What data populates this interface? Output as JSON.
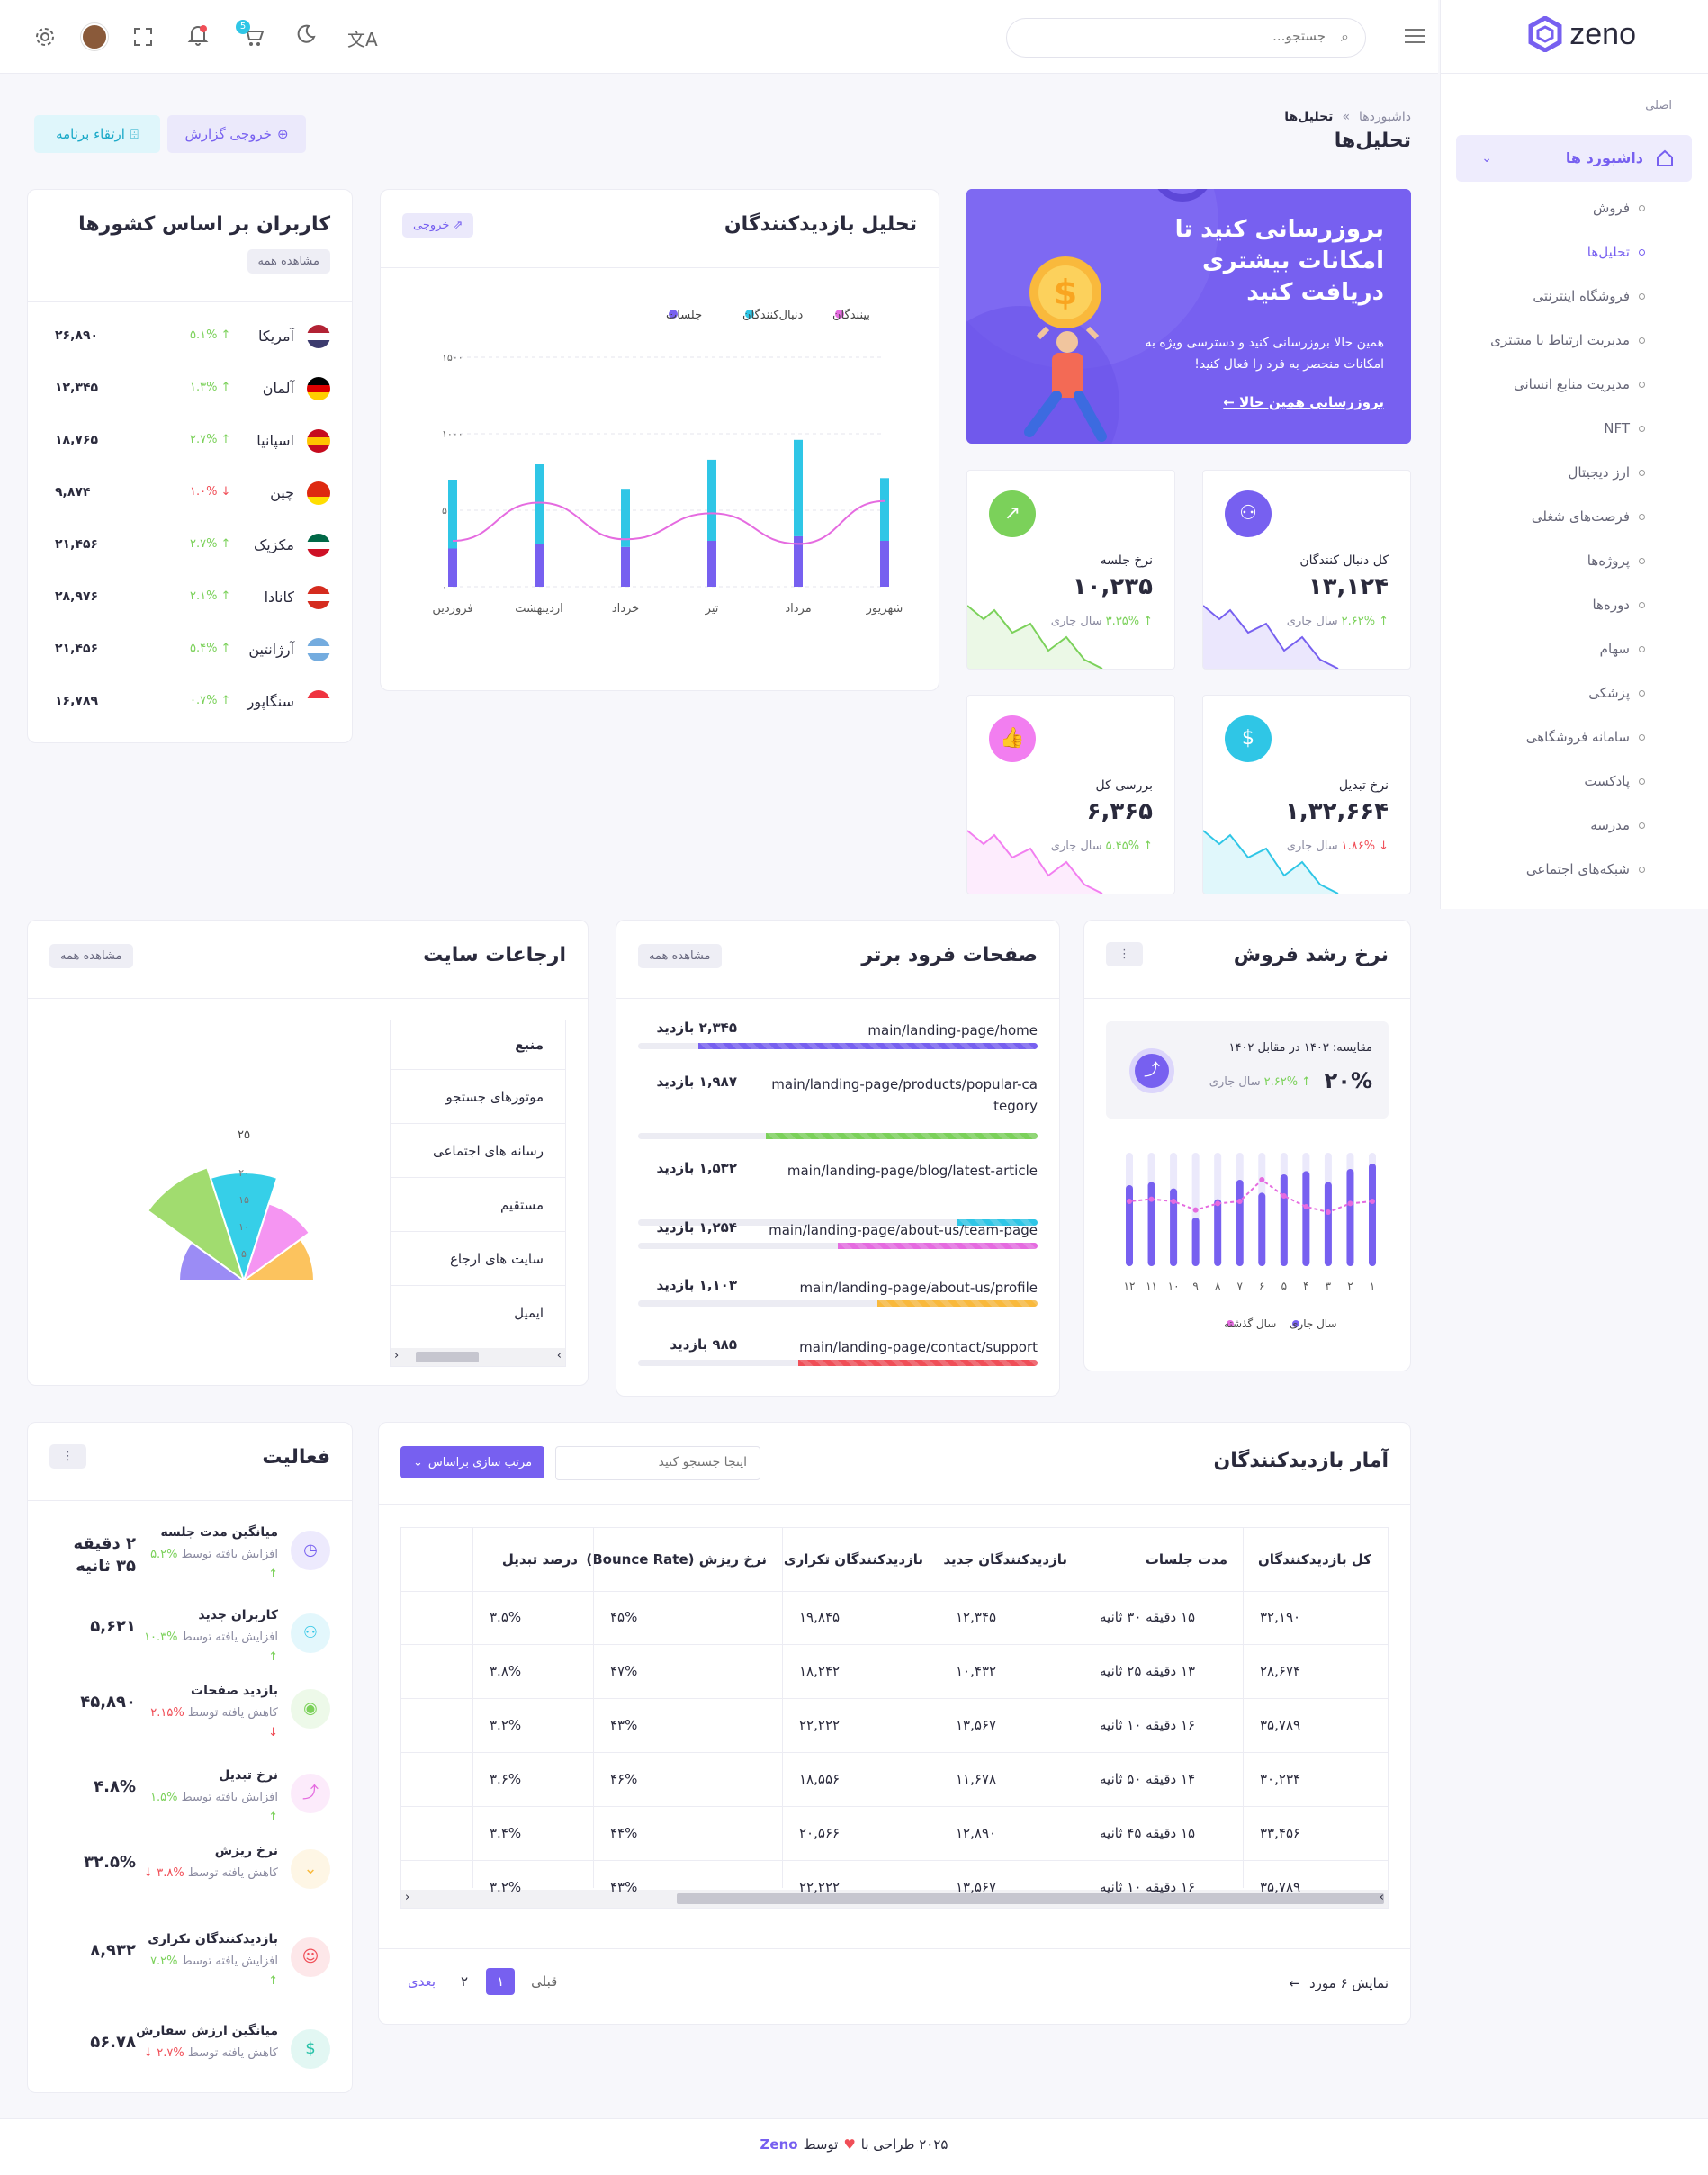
{
  "sidebar": {
    "logo_text": "zeno",
    "section": "اصلی",
    "dashboards_label": "داشبورد ها",
    "items": [
      "فروش",
      "تحلیل‌ها",
      "فروشگاه اینترنتی",
      "مدیریت ارتباط با مشتری",
      "مدیریت منابع انسانی",
      "NFT",
      "ارز دیجیتال",
      "فرصت‌های شغلی",
      "پروژه‌ها",
      "دوره‌ها",
      "سهام",
      "پزشکی",
      "سامانه فروشگاهی",
      "پادکست",
      "مدرسه",
      "شبکه‌های اجتماعی"
    ],
    "active_item": "تحلیل‌ها"
  },
  "header": {
    "search_placeholder": "جستجو...",
    "cart_badge": "5"
  },
  "page": {
    "breadcrumb_root": "داشبوردها",
    "breadcrumb_sep": "»",
    "breadcrumb_current": "تحلیل‌ها",
    "title": "تحلیل‌ها",
    "export_button": "خروجی گزارش",
    "upgrade_button": "ارتقاء برنامه"
  },
  "promo": {
    "title": "بروزرسانی کنید تا امکانات بیشتری دریافت کنید",
    "desc": "همین حالا بروزرسانی کنید و دسترسی ویژه به امکانات منحصر به فرد را فعال کنید!",
    "link": "بروزرسانی همین حالا ←"
  },
  "stats": [
    {
      "label": "کل دنبال کنندگان",
      "value": "۱۳,۱۲۴",
      "change": "۲.۶۲%",
      "dir": "up",
      "period": "سال جاری",
      "icon": "users-icon",
      "color": "#7760f0"
    },
    {
      "label": "نرخ جلسه",
      "value": "۱۰,۲۳۵",
      "change": "۳.۳۵%",
      "dir": "up",
      "period": "سال جاری",
      "icon": "trend-up-icon",
      "color": "#7bd15a"
    },
    {
      "label": "نرخ تبدیل",
      "value": "۱,۳۲,۶۶۴",
      "change": "۱.۸۶%",
      "dir": "down",
      "period": "سال جاری",
      "icon": "dollar-icon",
      "color": "#2fc6e6"
    },
    {
      "label": "بررسی کل",
      "value": "۶,۳۶۵",
      "change": "۵.۴۵%",
      "dir": "up",
      "period": "سال جاری",
      "icon": "thumbs-up-icon",
      "color": "#f27ef0"
    }
  ],
  "visitors_chart": {
    "title": "تحلیل بازدیدکنندگان",
    "export": "خروجی",
    "chart_data": {
      "type": "bar",
      "categories": [
        "فروردین",
        "اردیبهشت",
        "خرداد",
        "تیر",
        "مرداد",
        "شهریور"
      ],
      "series": [
        {
          "name": "جلسات",
          "values": [
            250,
            280,
            260,
            300,
            330,
            300
          ],
          "color": "#7760f0"
        },
        {
          "name": "دنبال‌کنندگان",
          "values": [
            450,
            520,
            380,
            530,
            630,
            410
          ],
          "color": "#2fc6e6"
        },
        {
          "name": "بینندگان",
          "values": [
            300,
            550,
            310,
            480,
            280,
            560
          ],
          "color": "#e56be0"
        }
      ],
      "y_ticks": [
        "۰",
        "۵۰۰",
        "۱۰۰۰",
        "۱۵۰۰"
      ],
      "ylim": [
        0,
        1500
      ],
      "grid": true,
      "legend_position": "top-center"
    }
  },
  "countries": {
    "title": "کاربران بر اساس کشورها",
    "view_all": "مشاهده همه",
    "rows": [
      {
        "name": "آمریکا",
        "change": "۵.۱%",
        "dir": "up",
        "value": "۲۶,۸۹۰",
        "flag": "us"
      },
      {
        "name": "آلمان",
        "change": "۱.۳%",
        "dir": "up",
        "value": "۱۲,۳۴۵",
        "flag": "de"
      },
      {
        "name": "اسپانیا",
        "change": "۲.۷%",
        "dir": "up",
        "value": "۱۸,۷۶۵",
        "flag": "es"
      },
      {
        "name": "چین",
        "change": "۱.۰%",
        "dir": "down",
        "value": "۹,۸۷۴",
        "flag": "cn"
      },
      {
        "name": "مکزیک",
        "change": "۲.۷%",
        "dir": "up",
        "value": "۲۱,۴۵۶",
        "flag": "mx"
      },
      {
        "name": "کانادا",
        "change": "۲.۱%",
        "dir": "up",
        "value": "۲۸,۹۷۶",
        "flag": "ca"
      },
      {
        "name": "آرژانتین",
        "change": "۵.۴%",
        "dir": "up",
        "value": "۲۱,۴۵۶",
        "flag": "ar"
      },
      {
        "name": "سنگاپور",
        "change": "۰.۷%",
        "dir": "up",
        "value": "۱۶,۷۸۹",
        "flag": "sg"
      }
    ]
  },
  "sales_growth": {
    "title": "نرخ رشد فروش",
    "compare_label": "مقایسه: ۱۴۰۳ در مقابل ۱۴۰۲",
    "percent": "۲۰%",
    "change": "۲.۶۲%",
    "period": "سال جاری",
    "chart_data": {
      "type": "bar",
      "categories": [
        "۱",
        "۲",
        "۳",
        "۴",
        "۵",
        "۶",
        "۷",
        "۸",
        "۹",
        "۱۰",
        "۱۱",
        "۱۲"
      ],
      "series": [
        {
          "name": "سال جاری",
          "values": [
            95,
            90,
            78,
            88,
            85,
            68,
            80,
            62,
            45,
            72,
            78,
            75
          ],
          "color": "#7760f0"
        },
        {
          "name": "سال گذشته",
          "values": [
            60,
            58,
            50,
            55,
            65,
            80,
            60,
            58,
            52,
            60,
            62,
            60
          ],
          "color": "#e56be0"
        }
      ]
    }
  },
  "landing": {
    "title": "صفحات فرود برتر",
    "view_all": "مشاهده همه",
    "rows": [
      {
        "path": "main/landing-page/home",
        "visits": "۲,۳۴۵ بازدید",
        "pct": 0.85,
        "color": "#7760f0"
      },
      {
        "path": "main/landing-page/products/popular-category",
        "visits": "۱,۹۸۷ بازدید",
        "pct": 0.68,
        "color": "#7bd15a"
      },
      {
        "path": "main/landing-page/blog/latest-article",
        "visits": "۱,۵۳۲ بازدید",
        "pct": 0.2,
        "color": "#2fc6e6"
      },
      {
        "path": "main/landing-page/about-us/team-page",
        "visits": "۱,۲۵۴ بازدید",
        "pct": 0.5,
        "color": "#e56be0"
      },
      {
        "path": "main/landing-page/about-us/profile",
        "visits": "۱,۱۰۳ بازدید",
        "pct": 0.4,
        "color": "#f9b93c"
      },
      {
        "path": "main/landing-page/contact/support",
        "visits": "۹۸۵ بازدید",
        "pct": 0.6,
        "color": "#f04e57"
      }
    ]
  },
  "referrals": {
    "title": "ارجاعات سایت",
    "view_all": "مشاهده همه",
    "header": "منبع",
    "sources": [
      "موتورهای جستجو",
      "رسانه های اجتماعی",
      "مستقیم",
      "سایت های ارجاع",
      "ایمیل"
    ],
    "chart_data": {
      "type": "polar-area",
      "max_label": "۲۵",
      "ticks": [
        "۵",
        "۱۰",
        "۱۵",
        "۲۰"
      ],
      "slices": [
        {
          "value": 12,
          "color": "#9b8cf5"
        },
        {
          "value": 22,
          "color": "#a1dc6f"
        },
        {
          "value": 20,
          "color": "#36cfe8"
        },
        {
          "value": 15,
          "color": "#f595f2"
        },
        {
          "value": 13,
          "color": "#fcc35e"
        }
      ]
    }
  },
  "activity": {
    "title": "فعالیت",
    "rows": [
      {
        "title": "میانگین مدت جلسه",
        "sub": "افزایش یافته توسط",
        "pct": "%۵.۲",
        "dir": "up",
        "value": "۲ دقیقه ۳۵ ثانیه",
        "icon": "clock-icon",
        "color": "#7760f0"
      },
      {
        "title": "کاربران جدید",
        "sub": "افزایش یافته توسط",
        "pct": "%۱۰.۳",
        "dir": "up",
        "value": "۵,۶۲۱",
        "icon": "user-add-icon",
        "color": "#2fc6e6"
      },
      {
        "title": "بازدید صفحات",
        "sub": "کاهش یافته توسط",
        "pct": "%۲.۱۵",
        "dir": "down",
        "value": "۴۵,۸۹۰",
        "icon": "eye-icon",
        "color": "#7bd15a"
      },
      {
        "title": "نرخ تبدیل",
        "sub": "افزایش یافته توسط",
        "pct": "%۱.۵",
        "dir": "up",
        "value": "۴.۸%",
        "icon": "chart-line-icon",
        "color": "#e56be0"
      },
      {
        "title": "نرخ ریزش",
        "sub": "کاهش یافته توسط",
        "pct": "%۳.۸",
        "dir": "down",
        "value": "۳۲.۵%",
        "icon": "chevron-down-icon",
        "color": "#f9b93c"
      },
      {
        "title": "بازدیدکنندگان تکراری",
        "sub": "افزایش یافته توسط",
        "pct": "%۷.۲",
        "dir": "up",
        "value": "۸,۹۳۲",
        "icon": "user-icon",
        "color": "#f04e57"
      },
      {
        "title": "میانگین ارزش سفارش",
        "sub": "کاهش یافته توسط",
        "pct": "%۲.۷",
        "dir": "down",
        "value": "۵۶.۷۸",
        "icon": "coin-icon",
        "color": "#27c2a8"
      }
    ]
  },
  "visitor_stats": {
    "title": "آمار بازدیدکنندگان",
    "search_placeholder": "اینجا جستجو کنید",
    "sort_button": "مرتب سازی براساس",
    "columns": [
      "کل بازدیدکنندگان",
      "مدت جلسات",
      "بازدیدکنندگان جدید",
      "بازدیدکنندگان تکراری",
      "نرخ ریزش (Bounce Rate)",
      "درصد تبدیل"
    ],
    "rows": [
      [
        "۳۲,۱۹۰",
        "۱۵ دقیقه ۳۰ ثانیه",
        "۱۲,۳۴۵",
        "۱۹,۸۴۵",
        "۴۵%",
        "۳.۵%"
      ],
      [
        "۲۸,۶۷۴",
        "۱۳ دقیقه ۲۵ ثانیه",
        "۱۰,۴۳۲",
        "۱۸,۲۴۲",
        "۴۷%",
        "۳.۸%"
      ],
      [
        "۳۵,۷۸۹",
        "۱۶ دقیقه ۱۰ ثانیه",
        "۱۳,۵۶۷",
        "۲۲,۲۲۲",
        "۴۳%",
        "۳.۲%"
      ],
      [
        "۳۰,۲۳۴",
        "۱۴ دقیقه ۵۰ ثانیه",
        "۱۱,۶۷۸",
        "۱۸,۵۵۶",
        "۴۶%",
        "۳.۶%"
      ],
      [
        "۳۳,۴۵۶",
        "۱۵ دقیقه ۴۵ ثانیه",
        "۱۲,۸۹۰",
        "۲۰,۵۶۶",
        "۴۴%",
        "۳.۴%"
      ],
      [
        "۳۵,۷۸۹",
        "۱۶ دقیقه ۱۰ ثانیه",
        "۱۳,۵۶۷",
        "۲۲,۲۲۲",
        "۴۳%",
        "۳.۲%"
      ]
    ],
    "showing": "نمایش ۶ مورد",
    "prev": "قبلی",
    "next": "بعدی",
    "pages": [
      "۱",
      "۲"
    ],
    "current_page": "۱"
  },
  "footer": {
    "text_a": "۲۰۲۵ طراحی با",
    "text_b": "توسط",
    "brand": "Zeno"
  }
}
